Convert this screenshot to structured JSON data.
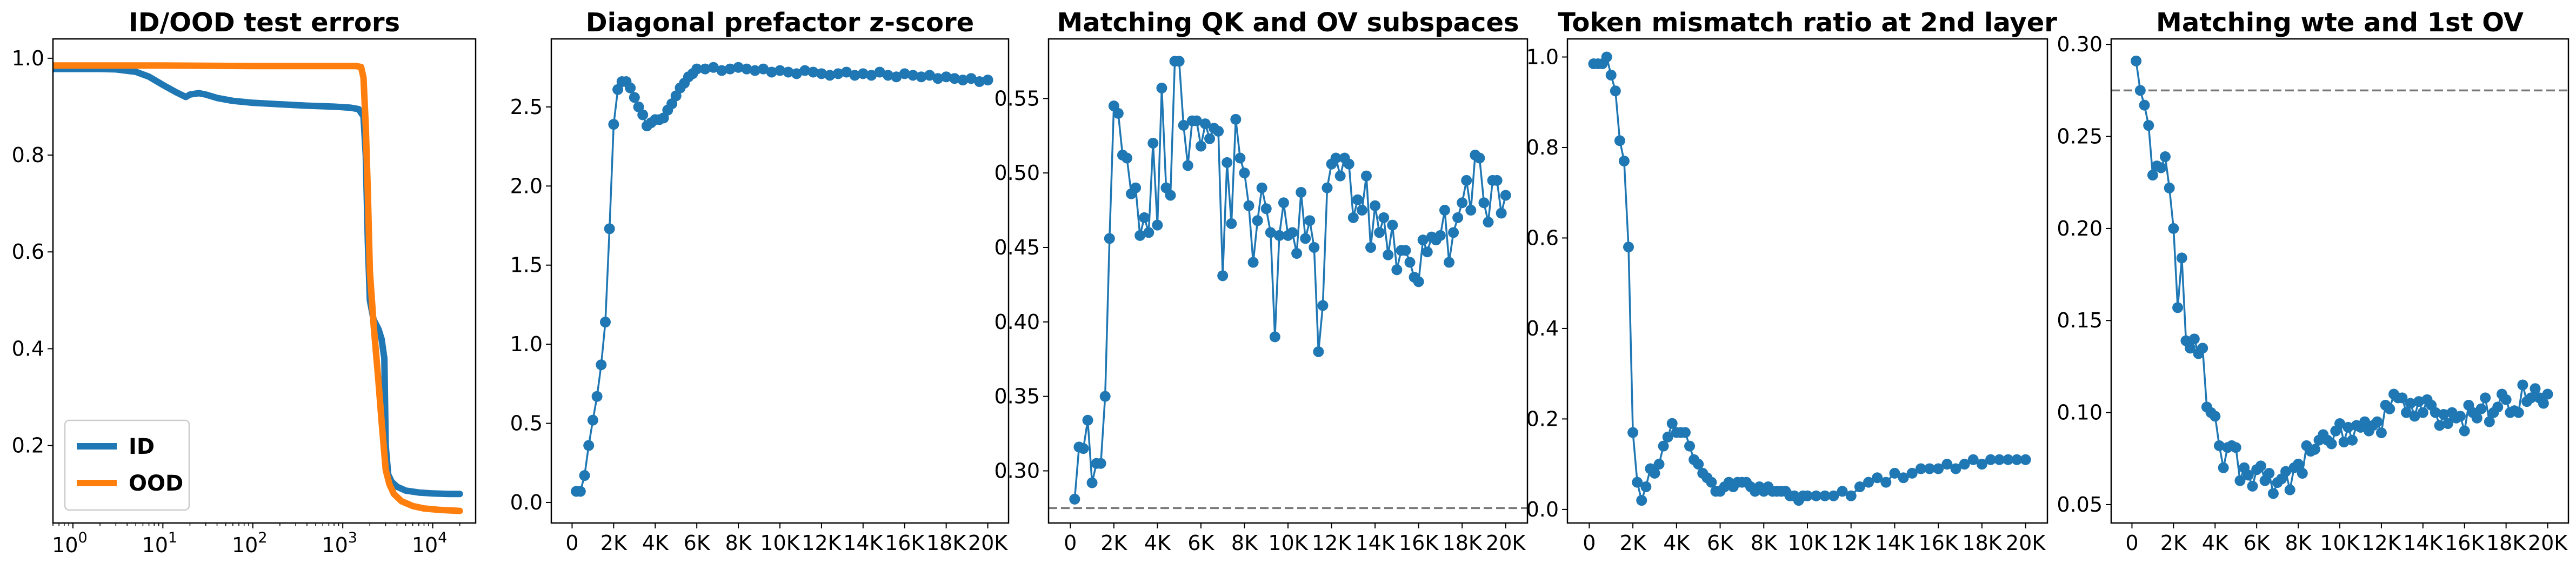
{
  "chart_data": [
    {
      "type": "line",
      "title": "ID/OOD test errors",
      "xscale": "log",
      "xlim": [
        0.6,
        30000
      ],
      "ylim": [
        0.04,
        1.04
      ],
      "yticks": [
        0.2,
        0.4,
        0.6,
        0.8,
        1.0
      ],
      "ytick_labels": [
        "0.2",
        "0.4",
        "0.6",
        "0.8",
        "1.0"
      ],
      "xticks": [
        1,
        10,
        100,
        1000,
        10000
      ],
      "xtick_labels": [
        {
          "base": "10",
          "exp": "0"
        },
        {
          "base": "10",
          "exp": "1"
        },
        {
          "base": "10",
          "exp": "2"
        },
        {
          "base": "10",
          "exp": "3"
        },
        {
          "base": "10",
          "exp": "4"
        }
      ],
      "legend": "lower-left",
      "series": [
        {
          "name": "ID",
          "color": "#1f77b4",
          "x": [
            0.6,
            1,
            2,
            3,
            5,
            7,
            10,
            14,
            18,
            20,
            25,
            30,
            40,
            60,
            100,
            200,
            400,
            800,
            1200,
            1500,
            1700,
            1800,
            1900,
            2000,
            2200,
            2500,
            2700,
            2900,
            3000,
            3200,
            3500,
            4000,
            5000,
            7000,
            10000,
            15000,
            20000
          ],
          "y": [
            0.978,
            0.978,
            0.978,
            0.977,
            0.972,
            0.962,
            0.945,
            0.93,
            0.92,
            0.925,
            0.928,
            0.925,
            0.918,
            0.912,
            0.908,
            0.905,
            0.902,
            0.9,
            0.898,
            0.895,
            0.88,
            0.8,
            0.62,
            0.5,
            0.46,
            0.44,
            0.42,
            0.38,
            0.2,
            0.14,
            0.125,
            0.115,
            0.107,
            0.103,
            0.101,
            0.1,
            0.1
          ]
        },
        {
          "name": "OOD",
          "color": "#ff7f0e",
          "x": [
            0.6,
            1,
            10,
            100,
            500,
            1000,
            1400,
            1600,
            1700,
            1800,
            1900,
            2000,
            2200,
            2500,
            2700,
            3000,
            3300,
            3700,
            4500,
            6000,
            8000,
            12000,
            20000
          ],
          "y": [
            0.985,
            0.985,
            0.985,
            0.984,
            0.984,
            0.984,
            0.984,
            0.982,
            0.96,
            0.86,
            0.72,
            0.56,
            0.45,
            0.33,
            0.25,
            0.15,
            0.12,
            0.1,
            0.085,
            0.075,
            0.07,
            0.067,
            0.065
          ]
        }
      ]
    },
    {
      "type": "line",
      "title": "Diagonal prefactor z-score",
      "xlim": [
        -1000,
        21000
      ],
      "ylim": [
        -0.13,
        2.93
      ],
      "yticks": [
        0.0,
        0.5,
        1.0,
        1.5,
        2.0,
        2.5
      ],
      "ytick_labels": [
        "0.0",
        "0.5",
        "1.0",
        "1.5",
        "2.0",
        "2.5"
      ],
      "xticks": [
        0,
        2000,
        4000,
        6000,
        8000,
        10000,
        12000,
        14000,
        16000,
        18000,
        20000
      ],
      "xtick_labels": [
        "0",
        "2K",
        "4K",
        "6K",
        "8K",
        "10K",
        "12K",
        "14K",
        "16K",
        "18K",
        "20K"
      ],
      "series": [
        {
          "name": "",
          "color": "#1f77b4",
          "x": [
            200,
            400,
            600,
            800,
            1000,
            1200,
            1400,
            1600,
            1800,
            2000,
            2200,
            2400,
            2600,
            2800,
            3000,
            3200,
            3400,
            3600,
            3800,
            4000,
            4200,
            4400,
            4600,
            4800,
            5000,
            5200,
            5400,
            5600,
            5800,
            6000,
            6400,
            6800,
            7200,
            7600,
            8000,
            8400,
            8800,
            9200,
            9600,
            10000,
            10400,
            10800,
            11200,
            11600,
            12000,
            12400,
            12800,
            13200,
            13600,
            14000,
            14400,
            14800,
            15200,
            15600,
            16000,
            16400,
            16800,
            17200,
            17600,
            18000,
            18400,
            18800,
            19200,
            19600,
            20000
          ],
          "y": [
            0.07,
            0.07,
            0.17,
            0.36,
            0.52,
            0.67,
            0.87,
            1.14,
            1.73,
            2.39,
            2.61,
            2.66,
            2.66,
            2.62,
            2.56,
            2.5,
            2.45,
            2.38,
            2.4,
            2.42,
            2.42,
            2.43,
            2.48,
            2.52,
            2.57,
            2.62,
            2.65,
            2.69,
            2.71,
            2.74,
            2.74,
            2.75,
            2.73,
            2.74,
            2.75,
            2.74,
            2.73,
            2.74,
            2.72,
            2.73,
            2.72,
            2.71,
            2.73,
            2.72,
            2.71,
            2.7,
            2.71,
            2.72,
            2.7,
            2.71,
            2.7,
            2.72,
            2.7,
            2.69,
            2.71,
            2.7,
            2.69,
            2.7,
            2.68,
            2.69,
            2.68,
            2.67,
            2.68,
            2.66,
            2.67
          ]
        }
      ]
    },
    {
      "type": "line",
      "title": "Matching QK and OV subspaces",
      "xlim": [
        -1000,
        21000
      ],
      "ylim": [
        0.265,
        0.59
      ],
      "yticks": [
        0.3,
        0.35,
        0.4,
        0.45,
        0.5,
        0.55
      ],
      "ytick_labels": [
        "0.30",
        "0.35",
        "0.40",
        "0.45",
        "0.50",
        "0.55"
      ],
      "xticks": [
        0,
        2000,
        4000,
        6000,
        8000,
        10000,
        12000,
        14000,
        16000,
        18000,
        20000
      ],
      "xtick_labels": [
        "0",
        "2K",
        "4K",
        "6K",
        "8K",
        "10K",
        "12K",
        "14K",
        "16K",
        "18K",
        "20K"
      ],
      "baseline": 0.275,
      "series": [
        {
          "name": "",
          "color": "#1f77b4",
          "x": [
            200,
            400,
            600,
            800,
            1000,
            1200,
            1400,
            1600,
            1800,
            2000,
            2200,
            2400,
            2600,
            2800,
            3000,
            3200,
            3400,
            3600,
            3800,
            4000,
            4200,
            4400,
            4600,
            4800,
            5000,
            5200,
            5400,
            5600,
            5800,
            6000,
            6200,
            6400,
            6600,
            6800,
            7000,
            7200,
            7400,
            7600,
            7800,
            8000,
            8200,
            8400,
            8600,
            8800,
            9000,
            9200,
            9400,
            9600,
            9800,
            10000,
            10200,
            10400,
            10600,
            10800,
            11000,
            11200,
            11400,
            11600,
            11800,
            12000,
            12200,
            12400,
            12600,
            12800,
            13000,
            13200,
            13400,
            13600,
            13800,
            14000,
            14200,
            14400,
            14600,
            14800,
            15000,
            15200,
            15400,
            15600,
            15800,
            16000,
            16200,
            16400,
            16600,
            16800,
            17000,
            17200,
            17400,
            17600,
            17800,
            18000,
            18200,
            18400,
            18600,
            18800,
            19000,
            19200,
            19400,
            19600,
            19800,
            20000
          ],
          "y": [
            0.281,
            0.316,
            0.315,
            0.334,
            0.292,
            0.305,
            0.305,
            0.35,
            0.456,
            0.545,
            0.54,
            0.512,
            0.51,
            0.486,
            0.49,
            0.458,
            0.47,
            0.46,
            0.52,
            0.465,
            0.557,
            0.49,
            0.485,
            0.575,
            0.575,
            0.532,
            0.505,
            0.535,
            0.535,
            0.518,
            0.533,
            0.523,
            0.53,
            0.528,
            0.431,
            0.507,
            0.466,
            0.536,
            0.51,
            0.5,
            0.478,
            0.44,
            0.468,
            0.49,
            0.476,
            0.46,
            0.39,
            0.458,
            0.48,
            0.458,
            0.46,
            0.446,
            0.487,
            0.456,
            0.468,
            0.45,
            0.38,
            0.411,
            0.49,
            0.506,
            0.51,
            0.498,
            0.51,
            0.506,
            0.47,
            0.482,
            0.475,
            0.498,
            0.45,
            0.478,
            0.46,
            0.47,
            0.445,
            0.465,
            0.435,
            0.448,
            0.448,
            0.44,
            0.43,
            0.427,
            0.455,
            0.447,
            0.457,
            0.455,
            0.458,
            0.475,
            0.44,
            0.46,
            0.47,
            0.48,
            0.495,
            0.475,
            0.512,
            0.51,
            0.48,
            0.467,
            0.495,
            0.495,
            0.473,
            0.485
          ]
        }
      ]
    },
    {
      "type": "line",
      "title": "Token mismatch ratio at 2nd layer",
      "xlim": [
        -1000,
        21000
      ],
      "ylim": [
        -0.03,
        1.04
      ],
      "yticks": [
        0.0,
        0.2,
        0.4,
        0.6,
        0.8,
        1.0
      ],
      "ytick_labels": [
        "0.0",
        "0.2",
        "0.4",
        "0.6",
        "0.8",
        "1.0"
      ],
      "xticks": [
        0,
        2000,
        4000,
        6000,
        8000,
        10000,
        12000,
        14000,
        16000,
        18000,
        20000
      ],
      "xtick_labels": [
        "0",
        "2K",
        "4K",
        "6K",
        "8K",
        "10K",
        "12K",
        "14K",
        "16K",
        "18K",
        "20K"
      ],
      "series": [
        {
          "name": "",
          "color": "#1f77b4",
          "x": [
            200,
            400,
            600,
            800,
            1000,
            1200,
            1400,
            1600,
            1800,
            2000,
            2200,
            2400,
            2600,
            2800,
            3000,
            3200,
            3400,
            3600,
            3800,
            4000,
            4200,
            4400,
            4600,
            4800,
            5000,
            5200,
            5400,
            5600,
            5800,
            6000,
            6200,
            6400,
            6600,
            6800,
            7000,
            7200,
            7400,
            7600,
            7800,
            8000,
            8200,
            8400,
            8600,
            8800,
            9000,
            9200,
            9400,
            9600,
            9800,
            10000,
            10400,
            10800,
            11200,
            11600,
            12000,
            12400,
            12800,
            13200,
            13600,
            14000,
            14400,
            14800,
            15200,
            15600,
            16000,
            16400,
            16800,
            17200,
            17600,
            18000,
            18400,
            18800,
            19200,
            19600,
            20000
          ],
          "y": [
            0.985,
            0.985,
            0.985,
            1.0,
            0.96,
            0.925,
            0.815,
            0.77,
            0.58,
            0.17,
            0.06,
            0.02,
            0.05,
            0.09,
            0.08,
            0.1,
            0.14,
            0.16,
            0.19,
            0.17,
            0.17,
            0.17,
            0.14,
            0.11,
            0.1,
            0.08,
            0.07,
            0.06,
            0.04,
            0.04,
            0.05,
            0.06,
            0.05,
            0.06,
            0.06,
            0.06,
            0.05,
            0.04,
            0.05,
            0.04,
            0.05,
            0.04,
            0.04,
            0.04,
            0.04,
            0.03,
            0.03,
            0.02,
            0.03,
            0.03,
            0.03,
            0.03,
            0.03,
            0.04,
            0.03,
            0.05,
            0.06,
            0.07,
            0.06,
            0.08,
            0.07,
            0.08,
            0.09,
            0.09,
            0.09,
            0.1,
            0.09,
            0.1,
            0.11,
            0.1,
            0.11,
            0.11,
            0.11,
            0.11,
            0.11
          ]
        }
      ]
    },
    {
      "type": "line",
      "title": "Matching wte and 1st OV",
      "xlim": [
        -1000,
        21000
      ],
      "ylim": [
        0.04,
        0.303
      ],
      "yticks": [
        0.05,
        0.1,
        0.15,
        0.2,
        0.25,
        0.3
      ],
      "ytick_labels": [
        "0.05",
        "0.10",
        "0.15",
        "0.20",
        "0.25",
        "0.30"
      ],
      "xticks": [
        0,
        2000,
        4000,
        6000,
        8000,
        10000,
        12000,
        14000,
        16000,
        18000,
        20000
      ],
      "xtick_labels": [
        "0",
        "2K",
        "4K",
        "6K",
        "8K",
        "10K",
        "12K",
        "14K",
        "16K",
        "18K",
        "20K"
      ],
      "baseline": 0.275,
      "series": [
        {
          "name": "",
          "color": "#1f77b4",
          "x": [
            200,
            400,
            600,
            800,
            1000,
            1200,
            1400,
            1600,
            1800,
            2000,
            2200,
            2400,
            2600,
            2800,
            3000,
            3200,
            3400,
            3600,
            3800,
            4000,
            4200,
            4400,
            4600,
            4800,
            5000,
            5200,
            5400,
            5600,
            5800,
            6000,
            6200,
            6400,
            6600,
            6800,
            7000,
            7200,
            7400,
            7600,
            7800,
            8000,
            8200,
            8400,
            8600,
            8800,
            9000,
            9200,
            9400,
            9600,
            9800,
            10000,
            10200,
            10400,
            10600,
            10800,
            11000,
            11200,
            11400,
            11600,
            11800,
            12000,
            12200,
            12400,
            12600,
            12800,
            13000,
            13200,
            13400,
            13600,
            13800,
            14000,
            14200,
            14400,
            14600,
            14800,
            15000,
            15200,
            15400,
            15600,
            15800,
            16000,
            16200,
            16400,
            16600,
            16800,
            17000,
            17200,
            17400,
            17600,
            17800,
            18000,
            18200,
            18400,
            18600,
            18800,
            19000,
            19200,
            19400,
            19600,
            19800,
            20000
          ],
          "y": [
            0.291,
            0.275,
            0.267,
            0.256,
            0.229,
            0.234,
            0.233,
            0.239,
            0.222,
            0.2,
            0.157,
            0.184,
            0.139,
            0.135,
            0.14,
            0.132,
            0.135,
            0.103,
            0.1,
            0.098,
            0.082,
            0.07,
            0.081,
            0.082,
            0.081,
            0.063,
            0.07,
            0.066,
            0.06,
            0.069,
            0.071,
            0.063,
            0.067,
            0.056,
            0.062,
            0.064,
            0.068,
            0.058,
            0.07,
            0.072,
            0.067,
            0.082,
            0.079,
            0.08,
            0.085,
            0.088,
            0.085,
            0.083,
            0.09,
            0.094,
            0.084,
            0.092,
            0.085,
            0.093,
            0.092,
            0.095,
            0.09,
            0.093,
            0.095,
            0.089,
            0.104,
            0.102,
            0.11,
            0.108,
            0.108,
            0.1,
            0.105,
            0.098,
            0.106,
            0.1,
            0.107,
            0.104,
            0.1,
            0.093,
            0.099,
            0.094,
            0.1,
            0.097,
            0.098,
            0.09,
            0.104,
            0.1,
            0.097,
            0.102,
            0.108,
            0.095,
            0.1,
            0.103,
            0.11,
            0.107,
            0.1,
            0.101,
            0.1,
            0.115,
            0.106,
            0.108,
            0.113,
            0.108,
            0.105,
            0.11
          ]
        }
      ]
    }
  ]
}
